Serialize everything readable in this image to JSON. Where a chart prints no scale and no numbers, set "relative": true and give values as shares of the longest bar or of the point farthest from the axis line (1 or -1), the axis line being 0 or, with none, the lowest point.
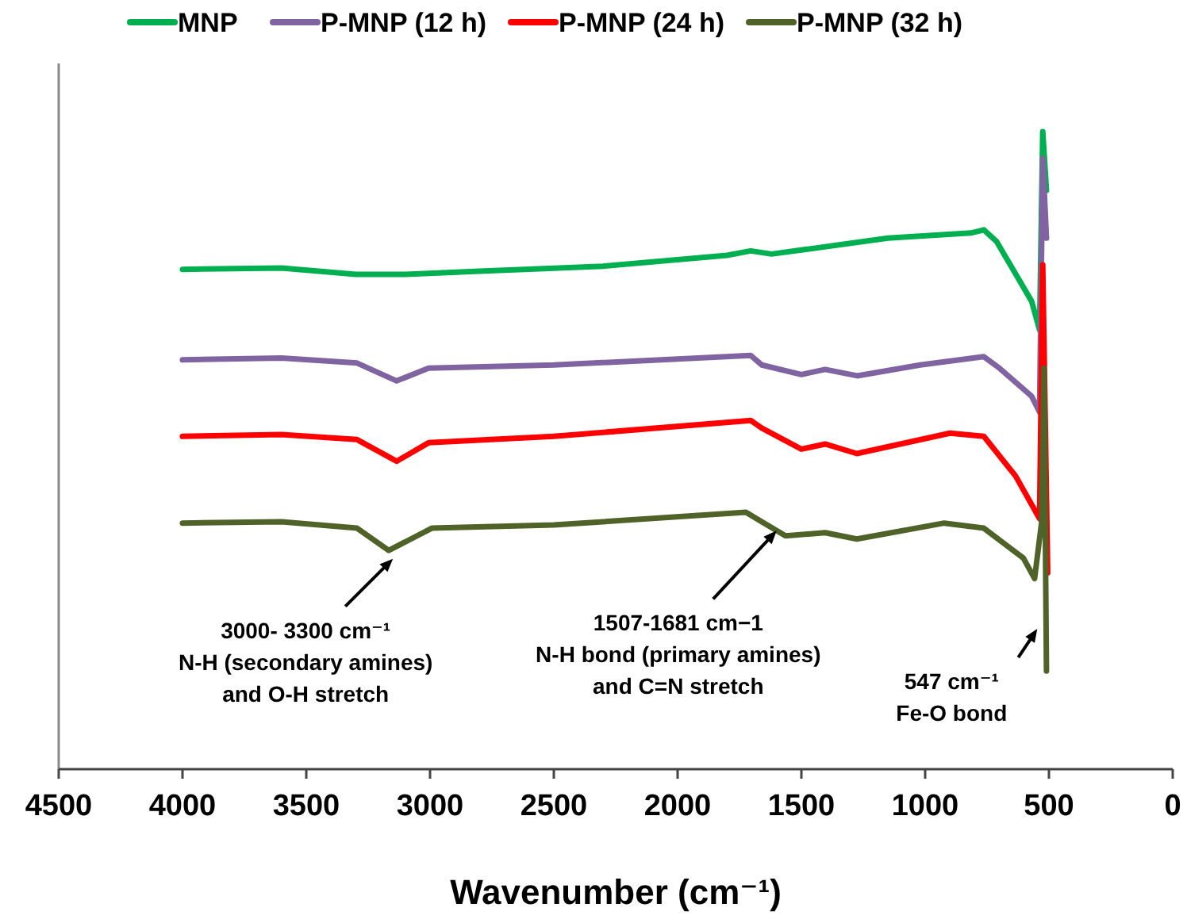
{
  "chart_data": {
    "type": "line",
    "relative": true,
    "xlabel": "Wavenumber (cm⁻¹)",
    "xlim": [
      4500,
      0
    ],
    "xticks": [
      4500,
      4000,
      3500,
      3000,
      2500,
      2000,
      1500,
      1000,
      500,
      0
    ],
    "legend": "top",
    "grid": false,
    "line_style": "solid",
    "marker": "none",
    "series": [
      {
        "name": "MNP",
        "color": "#00b050",
        "x": [
          4000,
          3600,
          3300,
          3100,
          2800,
          2300,
          1800,
          1705,
          1620,
          1150,
          815,
          763,
          712,
          570,
          538,
          525,
          510
        ],
        "values": [
          0.784,
          0.786,
          0.776,
          0.776,
          0.781,
          0.789,
          0.806,
          0.813,
          0.808,
          0.833,
          0.841,
          0.846,
          0.828,
          0.734,
          0.689,
          1,
          0.908
        ]
      },
      {
        "name": "P-MNP (12 h)",
        "color": "#8064a2",
        "x": [
          4000,
          3600,
          3295,
          3135,
          3006,
          2500,
          1705,
          1660,
          1500,
          1404,
          1275,
          1020,
          763,
          700,
          570,
          538,
          525,
          510
        ],
        "values": [
          0.642,
          0.645,
          0.637,
          0.609,
          0.629,
          0.634,
          0.649,
          0.634,
          0.619,
          0.627,
          0.617,
          0.634,
          0.647,
          0.629,
          0.585,
          0.56,
          0.958,
          0.833
        ]
      },
      {
        "name": "P-MNP (24 h)",
        "color": "#ff0000",
        "x": [
          4000,
          3600,
          3295,
          3135,
          3006,
          2500,
          1705,
          1660,
          1500,
          1404,
          1276,
          900,
          763,
          635,
          538,
          525,
          505
        ],
        "values": [
          0.522,
          0.525,
          0.517,
          0.483,
          0.512,
          0.522,
          0.547,
          0.535,
          0.502,
          0.51,
          0.495,
          0.527,
          0.522,
          0.46,
          0.393,
          0.791,
          0.308
        ]
      },
      {
        "name": "P-MNP (32 h)",
        "color": "#4f6228",
        "x": [
          4000,
          3600,
          3295,
          3167,
          2993,
          2500,
          1724,
          1660,
          1564,
          1404,
          1276,
          923,
          763,
          603,
          558,
          530,
          520,
          510
        ],
        "values": [
          0.386,
          0.388,
          0.378,
          0.343,
          0.378,
          0.383,
          0.403,
          0.388,
          0.366,
          0.371,
          0.361,
          0.386,
          0.378,
          0.331,
          0.299,
          0.386,
          0.629,
          0.154
        ]
      }
    ],
    "annotations": [
      {
        "text": "3000- 3300 cm⁻¹\nN-H (secondary amines)\nand O-H stretch",
        "x": 3150,
        "y": 0.33
      },
      {
        "text": "1507-1681 cm−1\nN-H bond (primary amines)\nand C=N stretch",
        "x": 1600,
        "y": 0.374
      },
      {
        "text": "547 cm⁻¹\nFe-O bond",
        "x": 547,
        "y": 0.22
      }
    ]
  }
}
